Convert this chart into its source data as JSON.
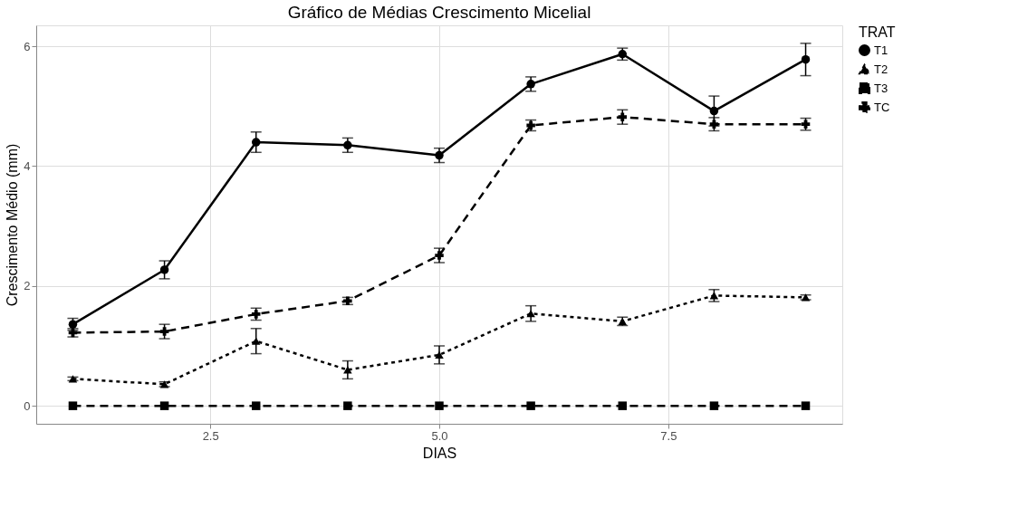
{
  "chart_data": {
    "type": "line",
    "title": "Gráfico de Médias Crescimento Micelial",
    "xlabel": "DIAS",
    "ylabel": "Crescimento Médio (mm)",
    "legend_title": "TRAT",
    "x": [
      1,
      2,
      3,
      4,
      5,
      6,
      7,
      8,
      9
    ],
    "series": [
      {
        "name": "T1",
        "color": "#000000",
        "marker": "circle",
        "line_style": "solid",
        "values": [
          1.36,
          2.27,
          4.4,
          4.35,
          4.18,
          5.37,
          5.87,
          4.92,
          5.78
        ],
        "errors": [
          0.1,
          0.15,
          0.17,
          0.12,
          0.12,
          0.12,
          0.1,
          0.25,
          0.27
        ]
      },
      {
        "name": "T2",
        "color": "#000000",
        "marker": "triangle",
        "line_style": "dotted",
        "values": [
          0.45,
          0.36,
          1.08,
          0.6,
          0.85,
          1.54,
          1.41,
          1.84,
          1.81
        ],
        "errors": [
          0.03,
          0.04,
          0.21,
          0.15,
          0.15,
          0.13,
          0.07,
          0.1,
          0.04
        ]
      },
      {
        "name": "T3",
        "color": "#000000",
        "marker": "square",
        "line_style": "dashed",
        "values": [
          0,
          0,
          0,
          0,
          0,
          0,
          0,
          0,
          0
        ]
      },
      {
        "name": "TC",
        "color": "#000000",
        "marker": "cross",
        "line_style": "dashed",
        "values": [
          1.22,
          1.24,
          1.53,
          1.75,
          2.51,
          4.68,
          4.82,
          4.7,
          4.7
        ],
        "errors": [
          0.07,
          0.12,
          0.1,
          0.06,
          0.12,
          0.09,
          0.12,
          0.11,
          0.1
        ]
      }
    ],
    "xlim": [
      0.6,
      9.4
    ],
    "xticks": [
      {
        "value": 2.5,
        "label": "2.5"
      },
      {
        "value": 5,
        "label": "5.0"
      },
      {
        "value": 7.5,
        "label": "7.5"
      }
    ],
    "ylim": [
      -0.3,
      6.35
    ],
    "yticks": [
      0,
      2,
      4,
      6
    ],
    "grid": true,
    "legend": "right"
  }
}
